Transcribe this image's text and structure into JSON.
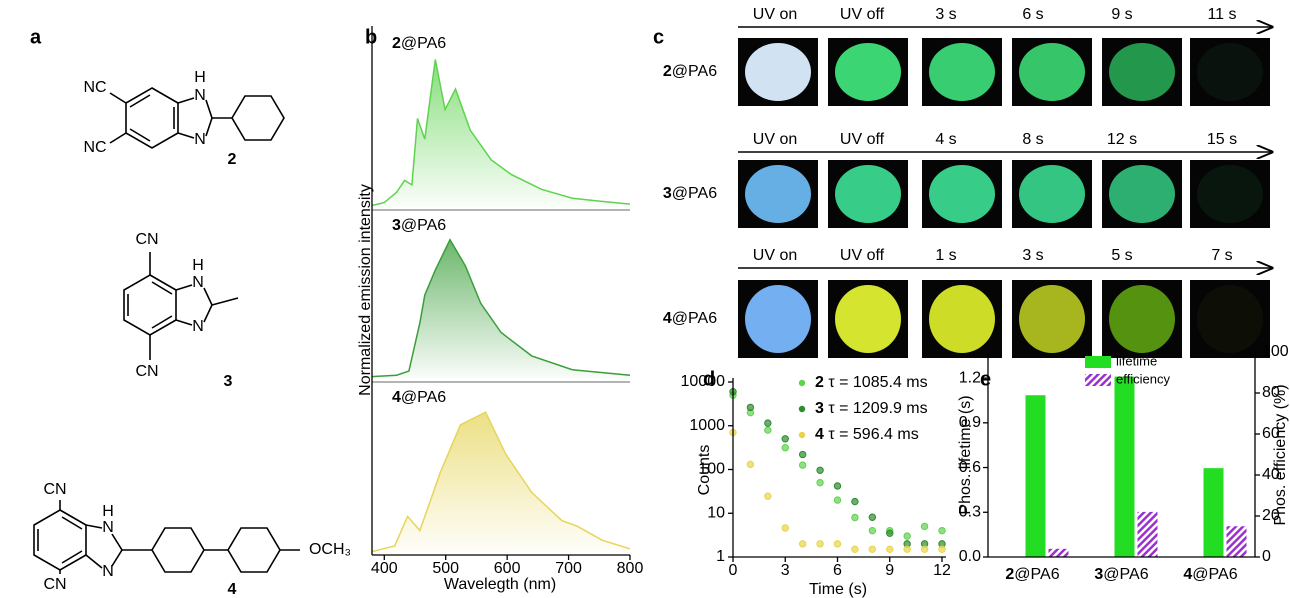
{
  "panel_labels": [
    "a",
    "b",
    "c",
    "d",
    "e"
  ],
  "structures": [
    {
      "atoms": [
        "NC",
        "NC",
        "H",
        "N",
        "N"
      ],
      "number": "2"
    },
    {
      "atoms": [
        "CN",
        "CN",
        "H",
        "N",
        "N"
      ],
      "number": "3"
    },
    {
      "atoms": [
        "CN",
        "CN",
        "H",
        "N",
        "N",
        "OCH₃"
      ],
      "number": "4"
    }
  ],
  "photos": {
    "rows": [
      {
        "sample": "2@PA6",
        "times": [
          "UV on",
          "UV off",
          "3 s",
          "6 s",
          "9 s",
          "11 s"
        ],
        "colors": [
          "#dcefff",
          "#3fe07a",
          "#3cd878",
          "#3ad070",
          "#25a050",
          "#0c1a10"
        ]
      },
      {
        "sample": "3@PA6",
        "times": [
          "UV on",
          "UV off",
          "4 s",
          "8 s",
          "12 s",
          "15 s"
        ],
        "colors": [
          "#6ab8f0",
          "#3ad890",
          "#3ad890",
          "#38d08a",
          "#30b878",
          "#0c2214"
        ]
      },
      {
        "sample": "4@PA6",
        "times": [
          "UV on",
          "UV off",
          "1 s",
          "3 s",
          "5 s",
          "7 s"
        ],
        "colors": [
          "#7ab8ff",
          "#e0f030",
          "#d8e828",
          "#b0c020",
          "#5a9a10",
          "#121608"
        ]
      }
    ]
  },
  "chart_data": [
    {
      "type": "area",
      "x_label": "Wavelegth (nm)",
      "y_label": "Normalized emission intensity",
      "xlim": [
        380,
        800
      ],
      "xticks": [
        400,
        500,
        600,
        700,
        800
      ],
      "ylim": [
        0,
        1.2
      ],
      "series": [
        {
          "name": "2@PA6",
          "color": "#5fd34f",
          "x": [
            380,
            400,
            420,
            433,
            445,
            454,
            466,
            483,
            499,
            516,
            540,
            574,
            607,
            656,
            706,
            750,
            800
          ],
          "values": [
            0.01,
            0.03,
            0.1,
            0.18,
            0.15,
            0.6,
            0.46,
            1.0,
            0.66,
            0.8,
            0.52,
            0.32,
            0.22,
            0.12,
            0.06,
            0.04,
            0.02
          ]
        },
        {
          "name": "3@PA6",
          "color": "#3a9e3a",
          "x": [
            380,
            420,
            440,
            458,
            466,
            483,
            507,
            532,
            557,
            590,
            640,
            706,
            800
          ],
          "values": [
            0.01,
            0.02,
            0.05,
            0.4,
            0.6,
            0.78,
            1.0,
            0.81,
            0.54,
            0.33,
            0.16,
            0.06,
            0.02
          ]
        },
        {
          "name": "4@PA6",
          "color": "#e6d55a",
          "x": [
            380,
            417,
            438,
            458,
            491,
            524,
            565,
            598,
            640,
            689,
            714,
            755,
            800
          ],
          "values": [
            0.01,
            0.05,
            0.26,
            0.16,
            0.57,
            0.91,
            1.0,
            0.7,
            0.43,
            0.23,
            0.19,
            0.09,
            0.03
          ]
        }
      ]
    },
    {
      "type": "scatter",
      "log_y": true,
      "x_label": "Time (s)",
      "y_label": "Counts",
      "xlim": [
        0,
        12
      ],
      "xticks": [
        0,
        3,
        6,
        9,
        12
      ],
      "ylim": [
        1,
        10000
      ],
      "yticks": [
        1,
        10,
        100,
        1000,
        10000
      ],
      "x": [
        0,
        1,
        2,
        3,
        4,
        5,
        6,
        7,
        8,
        9,
        10,
        11,
        12
      ],
      "series": [
        {
          "name": "2 τ = 1085.4 ms",
          "color": "#5fd34f",
          "values": [
            5000,
            1990,
            792,
            315,
            126,
            50,
            20,
            8,
            4,
            4,
            3,
            5,
            4
          ]
        },
        {
          "name": "3 τ = 1209.9 ms",
          "color": "#2e8b2e",
          "values": [
            6000,
            2626,
            1149,
            503,
            220,
            96,
            42,
            18.5,
            8.1,
            3.5,
            2,
            2,
            2
          ]
        },
        {
          "name": "4 τ = 596.4 ms",
          "color": "#e8d44a",
          "values": [
            700,
            131,
            24.5,
            4.6,
            2,
            2,
            2,
            1.5,
            1.5,
            1.5,
            1.5,
            1.5,
            1.5
          ]
        }
      ]
    },
    {
      "type": "bar",
      "categories": [
        "2@PA6",
        "3@PA6",
        "4@PA6"
      ],
      "y_label": "Phos. lifetime (s)",
      "y2_label": "Phos. efficiency (%)",
      "ylim": [
        0,
        1.375
      ],
      "yticks": [
        {
          "value": 0,
          "label": "0.0"
        },
        {
          "value": 0.3,
          "label": "0.3"
        },
        {
          "value": 0.6,
          "label": "0.6"
        },
        {
          "value": 0.9,
          "label": "0.9"
        },
        {
          "value": 1.2,
          "label": "1.2"
        }
      ],
      "y2lim": [
        0,
        100
      ],
      "y2ticks": [
        0,
        20,
        40,
        60,
        80,
        100
      ],
      "series": [
        {
          "name": "lifetime",
          "color": "#22dd22",
          "values": [
            1.085,
            1.21,
            0.596
          ]
        },
        {
          "name": "efficiency",
          "color": "#9b30d0",
          "axis": "y2",
          "hatch": true,
          "values": [
            4,
            22,
            15
          ]
        }
      ]
    }
  ]
}
